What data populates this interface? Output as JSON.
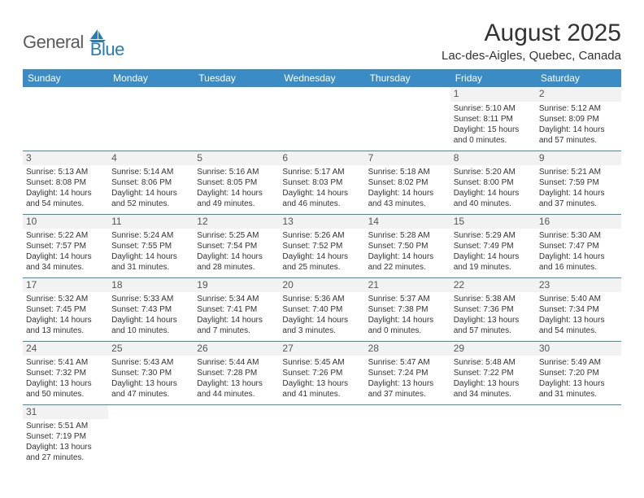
{
  "logo": {
    "general": "General",
    "blue": "Blue",
    "general_color": "#5a5a5a",
    "blue_color": "#2a7ab8",
    "sail_color": "#2a7ab8"
  },
  "header": {
    "month_title": "August 2025",
    "location": "Lac-des-Aigles, Quebec, Canada"
  },
  "colors": {
    "header_bg": "#3b8bc5",
    "header_text": "#ffffff",
    "daynum_bg": "#f2f2f2",
    "border": "#3b8bc5",
    "text": "#333333"
  },
  "daynames": [
    "Sunday",
    "Monday",
    "Tuesday",
    "Wednesday",
    "Thursday",
    "Friday",
    "Saturday"
  ],
  "weeks": [
    [
      null,
      null,
      null,
      null,
      null,
      {
        "num": "1",
        "sunrise": "Sunrise: 5:10 AM",
        "sunset": "Sunset: 8:11 PM",
        "daylight": "Daylight: 15 hours and 0 minutes."
      },
      {
        "num": "2",
        "sunrise": "Sunrise: 5:12 AM",
        "sunset": "Sunset: 8:09 PM",
        "daylight": "Daylight: 14 hours and 57 minutes."
      }
    ],
    [
      {
        "num": "3",
        "sunrise": "Sunrise: 5:13 AM",
        "sunset": "Sunset: 8:08 PM",
        "daylight": "Daylight: 14 hours and 54 minutes."
      },
      {
        "num": "4",
        "sunrise": "Sunrise: 5:14 AM",
        "sunset": "Sunset: 8:06 PM",
        "daylight": "Daylight: 14 hours and 52 minutes."
      },
      {
        "num": "5",
        "sunrise": "Sunrise: 5:16 AM",
        "sunset": "Sunset: 8:05 PM",
        "daylight": "Daylight: 14 hours and 49 minutes."
      },
      {
        "num": "6",
        "sunrise": "Sunrise: 5:17 AM",
        "sunset": "Sunset: 8:03 PM",
        "daylight": "Daylight: 14 hours and 46 minutes."
      },
      {
        "num": "7",
        "sunrise": "Sunrise: 5:18 AM",
        "sunset": "Sunset: 8:02 PM",
        "daylight": "Daylight: 14 hours and 43 minutes."
      },
      {
        "num": "8",
        "sunrise": "Sunrise: 5:20 AM",
        "sunset": "Sunset: 8:00 PM",
        "daylight": "Daylight: 14 hours and 40 minutes."
      },
      {
        "num": "9",
        "sunrise": "Sunrise: 5:21 AM",
        "sunset": "Sunset: 7:59 PM",
        "daylight": "Daylight: 14 hours and 37 minutes."
      }
    ],
    [
      {
        "num": "10",
        "sunrise": "Sunrise: 5:22 AM",
        "sunset": "Sunset: 7:57 PM",
        "daylight": "Daylight: 14 hours and 34 minutes."
      },
      {
        "num": "11",
        "sunrise": "Sunrise: 5:24 AM",
        "sunset": "Sunset: 7:55 PM",
        "daylight": "Daylight: 14 hours and 31 minutes."
      },
      {
        "num": "12",
        "sunrise": "Sunrise: 5:25 AM",
        "sunset": "Sunset: 7:54 PM",
        "daylight": "Daylight: 14 hours and 28 minutes."
      },
      {
        "num": "13",
        "sunrise": "Sunrise: 5:26 AM",
        "sunset": "Sunset: 7:52 PM",
        "daylight": "Daylight: 14 hours and 25 minutes."
      },
      {
        "num": "14",
        "sunrise": "Sunrise: 5:28 AM",
        "sunset": "Sunset: 7:50 PM",
        "daylight": "Daylight: 14 hours and 22 minutes."
      },
      {
        "num": "15",
        "sunrise": "Sunrise: 5:29 AM",
        "sunset": "Sunset: 7:49 PM",
        "daylight": "Daylight: 14 hours and 19 minutes."
      },
      {
        "num": "16",
        "sunrise": "Sunrise: 5:30 AM",
        "sunset": "Sunset: 7:47 PM",
        "daylight": "Daylight: 14 hours and 16 minutes."
      }
    ],
    [
      {
        "num": "17",
        "sunrise": "Sunrise: 5:32 AM",
        "sunset": "Sunset: 7:45 PM",
        "daylight": "Daylight: 14 hours and 13 minutes."
      },
      {
        "num": "18",
        "sunrise": "Sunrise: 5:33 AM",
        "sunset": "Sunset: 7:43 PM",
        "daylight": "Daylight: 14 hours and 10 minutes."
      },
      {
        "num": "19",
        "sunrise": "Sunrise: 5:34 AM",
        "sunset": "Sunset: 7:41 PM",
        "daylight": "Daylight: 14 hours and 7 minutes."
      },
      {
        "num": "20",
        "sunrise": "Sunrise: 5:36 AM",
        "sunset": "Sunset: 7:40 PM",
        "daylight": "Daylight: 14 hours and 3 minutes."
      },
      {
        "num": "21",
        "sunrise": "Sunrise: 5:37 AM",
        "sunset": "Sunset: 7:38 PM",
        "daylight": "Daylight: 14 hours and 0 minutes."
      },
      {
        "num": "22",
        "sunrise": "Sunrise: 5:38 AM",
        "sunset": "Sunset: 7:36 PM",
        "daylight": "Daylight: 13 hours and 57 minutes."
      },
      {
        "num": "23",
        "sunrise": "Sunrise: 5:40 AM",
        "sunset": "Sunset: 7:34 PM",
        "daylight": "Daylight: 13 hours and 54 minutes."
      }
    ],
    [
      {
        "num": "24",
        "sunrise": "Sunrise: 5:41 AM",
        "sunset": "Sunset: 7:32 PM",
        "daylight": "Daylight: 13 hours and 50 minutes."
      },
      {
        "num": "25",
        "sunrise": "Sunrise: 5:43 AM",
        "sunset": "Sunset: 7:30 PM",
        "daylight": "Daylight: 13 hours and 47 minutes."
      },
      {
        "num": "26",
        "sunrise": "Sunrise: 5:44 AM",
        "sunset": "Sunset: 7:28 PM",
        "daylight": "Daylight: 13 hours and 44 minutes."
      },
      {
        "num": "27",
        "sunrise": "Sunrise: 5:45 AM",
        "sunset": "Sunset: 7:26 PM",
        "daylight": "Daylight: 13 hours and 41 minutes."
      },
      {
        "num": "28",
        "sunrise": "Sunrise: 5:47 AM",
        "sunset": "Sunset: 7:24 PM",
        "daylight": "Daylight: 13 hours and 37 minutes."
      },
      {
        "num": "29",
        "sunrise": "Sunrise: 5:48 AM",
        "sunset": "Sunset: 7:22 PM",
        "daylight": "Daylight: 13 hours and 34 minutes."
      },
      {
        "num": "30",
        "sunrise": "Sunrise: 5:49 AM",
        "sunset": "Sunset: 7:20 PM",
        "daylight": "Daylight: 13 hours and 31 minutes."
      }
    ],
    [
      {
        "num": "31",
        "sunrise": "Sunrise: 5:51 AM",
        "sunset": "Sunset: 7:19 PM",
        "daylight": "Daylight: 13 hours and 27 minutes."
      },
      null,
      null,
      null,
      null,
      null,
      null
    ]
  ]
}
